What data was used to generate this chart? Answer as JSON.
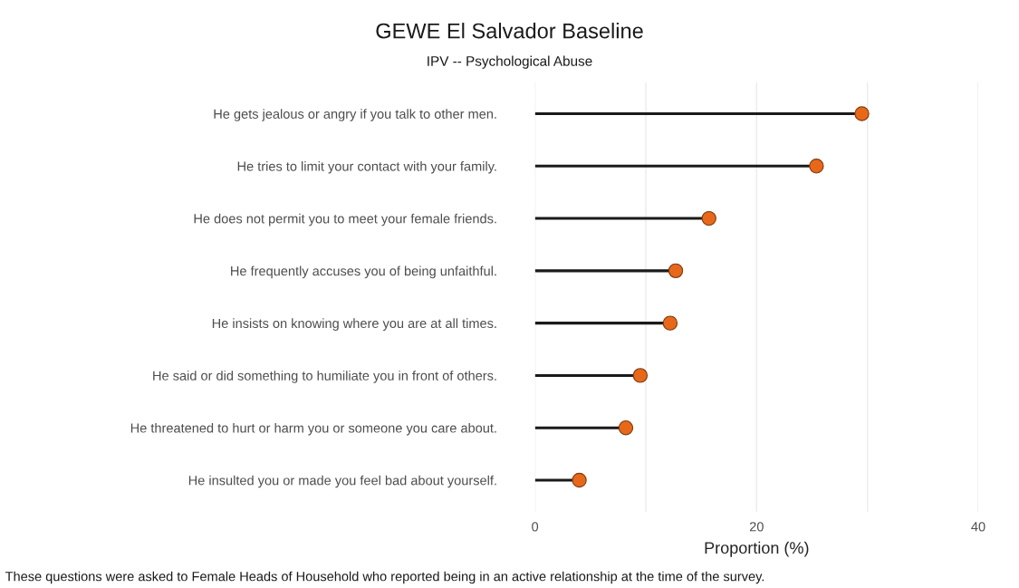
{
  "chart_data": {
    "type": "lollipop",
    "orientation": "horizontal",
    "title": "GEWE El Salvador Baseline",
    "subtitle": "IPV -- Psychological Abuse",
    "xlabel": "Proportion (%)",
    "categories": [
      "He gets jealous or angry if you talk to other men.",
      "He tries to limit your contact with your family.",
      "He does not permit you to meet your female friends.",
      "He frequently accuses you of being unfaithful.",
      "He insists on knowing where you are at all times.",
      "He said or did something to humiliate you in front of others.",
      "He threatened to hurt or harm you or someone you care about.",
      "He insulted you or made you feel bad about yourself."
    ],
    "values": [
      29.5,
      25.4,
      15.7,
      12.7,
      12.2,
      9.5,
      8.2,
      4.0
    ],
    "color": "#e8681a",
    "xlim": [
      0,
      40
    ],
    "xticks": [
      0,
      {
        "value": 10,
        "label": null
      },
      20,
      {
        "value": 30,
        "label": null
      },
      40
    ],
    "grid": "x",
    "marker": "circle",
    "annotations": [
      "These questions were asked to Female Heads of Household who reported being in an active relationship at the time of the survey."
    ]
  }
}
